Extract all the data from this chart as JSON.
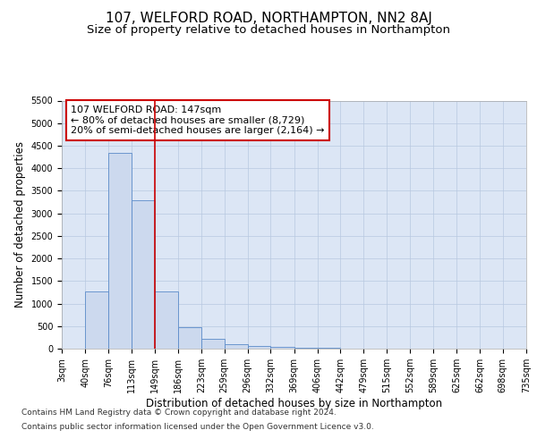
{
  "title": "107, WELFORD ROAD, NORTHAMPTON, NN2 8AJ",
  "subtitle": "Size of property relative to detached houses in Northampton",
  "xlabel": "Distribution of detached houses by size in Northampton",
  "ylabel": "Number of detached properties",
  "footer_line1": "Contains HM Land Registry data © Crown copyright and database right 2024.",
  "footer_line2": "Contains public sector information licensed under the Open Government Licence v3.0.",
  "bin_labels": [
    "3sqm",
    "40sqm",
    "76sqm",
    "113sqm",
    "149sqm",
    "186sqm",
    "223sqm",
    "259sqm",
    "296sqm",
    "332sqm",
    "369sqm",
    "406sqm",
    "442sqm",
    "479sqm",
    "515sqm",
    "552sqm",
    "589sqm",
    "625sqm",
    "662sqm",
    "698sqm",
    "735sqm"
  ],
  "bar_values": [
    0,
    1270,
    4350,
    3300,
    1270,
    480,
    215,
    95,
    60,
    30,
    15,
    10,
    5,
    3,
    2,
    2,
    1,
    1,
    0,
    0
  ],
  "bin_edges": [
    3,
    40,
    76,
    113,
    149,
    186,
    223,
    259,
    296,
    332,
    369,
    406,
    442,
    479,
    515,
    552,
    589,
    625,
    662,
    698,
    735
  ],
  "bar_color": "#ccd9ee",
  "bar_edgecolor": "#5b8bc9",
  "vline_x": 149,
  "vline_color": "#cc0000",
  "annotation_line1": "107 WELFORD ROAD: 147sqm",
  "annotation_line2": "← 80% of detached houses are smaller (8,729)",
  "annotation_line3": "20% of semi-detached houses are larger (2,164) →",
  "annotation_box_color": "#cc0000",
  "ylim": [
    0,
    5500
  ],
  "yticks": [
    0,
    500,
    1000,
    1500,
    2000,
    2500,
    3000,
    3500,
    4000,
    4500,
    5000,
    5500
  ],
  "plot_bg_color": "#dce6f5",
  "fig_bg_color": "#ffffff",
  "grid_color": "#b8c8e0",
  "title_fontsize": 11,
  "subtitle_fontsize": 9.5,
  "axis_label_fontsize": 8.5,
  "tick_fontsize": 7,
  "annotation_fontsize": 8,
  "footer_fontsize": 6.5
}
